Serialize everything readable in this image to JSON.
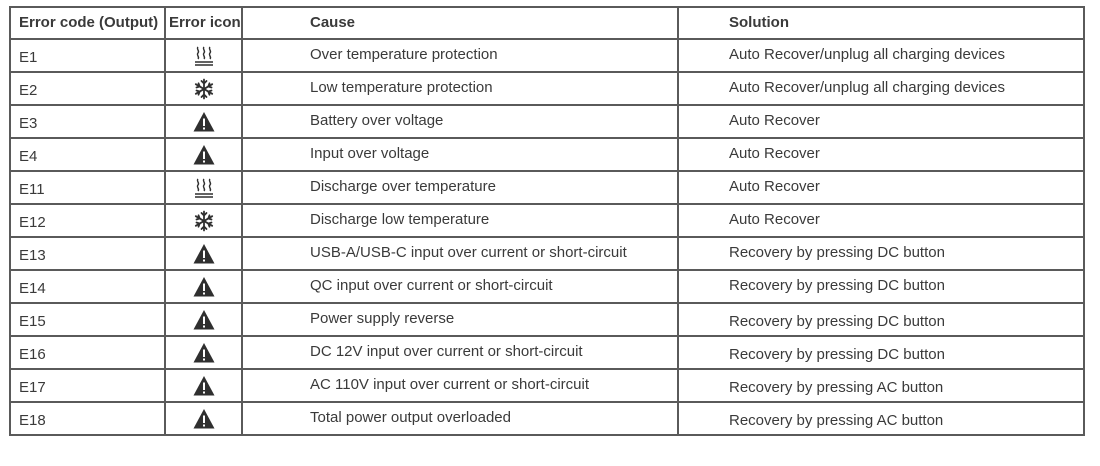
{
  "table": {
    "headers": {
      "code": "Error code (Output)",
      "icon": "Error icon",
      "cause": "Cause",
      "solution": "Solution"
    },
    "rows": [
      {
        "code": "E1",
        "icon": "heat-icon",
        "cause": "Over temperature protection",
        "solution": "Auto Recover/unplug all charging devices"
      },
      {
        "code": "E2",
        "icon": "snowflake-icon",
        "cause": "Low temperature protection",
        "solution": "Auto Recover/unplug all charging devices"
      },
      {
        "code": "E3",
        "icon": "warning-icon",
        "cause": "Battery over voltage",
        "solution": "Auto Recover"
      },
      {
        "code": "E4",
        "icon": "warning-icon",
        "cause": "Input over voltage",
        "solution": "Auto Recover"
      },
      {
        "code": "E11",
        "icon": "heat-icon",
        "cause": "Discharge over temperature",
        "solution": "Auto Recover"
      },
      {
        "code": "E12",
        "icon": "snowflake-icon",
        "cause": "Discharge low temperature",
        "solution": "Auto Recover"
      },
      {
        "code": "E13",
        "icon": "warning-icon",
        "cause": "USB-A/USB-C input over current or short-circuit",
        "solution": "Recovery by pressing DC button"
      },
      {
        "code": "E14",
        "icon": "warning-icon",
        "cause": "QC input over current or short-circuit",
        "solution": "Recovery by pressing DC button"
      },
      {
        "code": "E15",
        "icon": "warning-icon",
        "cause": "Power supply reverse",
        "solution": "Recovery by pressing DC button"
      },
      {
        "code": "E16",
        "icon": "warning-icon",
        "cause": "DC 12V input over current or short-circuit",
        "solution": "Recovery by pressing DC button"
      },
      {
        "code": "E17",
        "icon": "warning-icon",
        "cause": "AC 110V input over current or short-circuit",
        "solution": "Recovery by pressing AC button"
      },
      {
        "code": "E18",
        "icon": "warning-icon",
        "cause": "Total power output overloaded",
        "solution": "Recovery by pressing AC button"
      }
    ]
  },
  "colors": {
    "text": "#3a3a3a",
    "border": "#5a5a5a",
    "icon": "#2f2f2f"
  }
}
